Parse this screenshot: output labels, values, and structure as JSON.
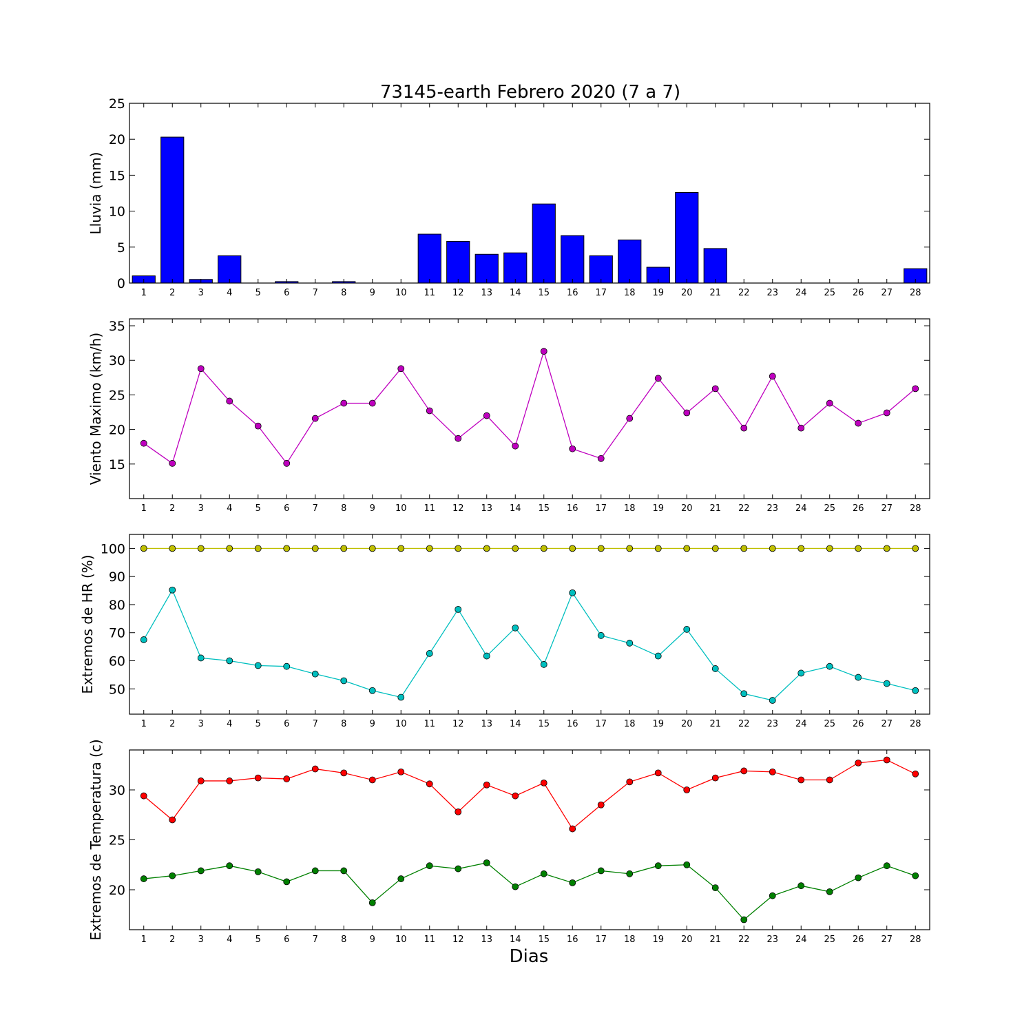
{
  "figure": {
    "title": "73145-earth Febrero 2020  (7 a 7)",
    "xlabel": "Dias"
  },
  "chart_data": [
    {
      "type": "bar",
      "ylabel": "Lluvia (mm)",
      "ylim": [
        0,
        25
      ],
      "yticks": [
        0,
        5,
        10,
        15,
        20,
        25
      ],
      "grid": false,
      "color": "#0000ff",
      "x": [
        1,
        2,
        3,
        4,
        5,
        6,
        7,
        8,
        9,
        10,
        11,
        12,
        13,
        14,
        15,
        16,
        17,
        18,
        19,
        20,
        21,
        22,
        23,
        24,
        25,
        26,
        27,
        28
      ],
      "values": [
        1.0,
        20.3,
        0.5,
        3.8,
        0,
        0.2,
        0,
        0.2,
        0,
        0,
        6.8,
        5.8,
        4.0,
        4.2,
        11.0,
        6.6,
        3.8,
        6.0,
        2.2,
        12.6,
        4.8,
        0,
        0,
        0,
        0,
        0,
        0,
        2.0
      ]
    },
    {
      "type": "line",
      "ylabel": "Viento Maximo (km/h)",
      "ylim": [
        10,
        36
      ],
      "yticks": [
        15,
        20,
        25,
        30,
        35
      ],
      "grid": false,
      "x": [
        1,
        2,
        3,
        4,
        5,
        6,
        7,
        8,
        9,
        10,
        11,
        12,
        13,
        14,
        15,
        16,
        17,
        18,
        19,
        20,
        21,
        22,
        23,
        24,
        25,
        26,
        27,
        28
      ],
      "series": [
        {
          "color": "#bf00bf",
          "values": [
            18.0,
            15.1,
            28.8,
            24.1,
            20.5,
            15.1,
            21.6,
            23.8,
            23.8,
            28.8,
            22.7,
            18.7,
            22.0,
            17.6,
            31.3,
            17.2,
            15.8,
            21.6,
            27.4,
            22.4,
            25.9,
            20.2,
            27.7,
            20.2,
            23.8,
            20.9,
            22.4,
            25.9
          ]
        }
      ]
    },
    {
      "type": "line",
      "ylabel": "Extremos de HR (%)",
      "ylim": [
        41,
        105
      ],
      "yticks": [
        50,
        60,
        70,
        80,
        90,
        100
      ],
      "grid": false,
      "x": [
        1,
        2,
        3,
        4,
        5,
        6,
        7,
        8,
        9,
        10,
        11,
        12,
        13,
        14,
        15,
        16,
        17,
        18,
        19,
        20,
        21,
        22,
        23,
        24,
        25,
        26,
        27,
        28
      ],
      "series": [
        {
          "color": "#bfbf00",
          "values": [
            100,
            100,
            100,
            100,
            100,
            100,
            100,
            100,
            100,
            100,
            100,
            100,
            100,
            100,
            100,
            100,
            100,
            100,
            100,
            100,
            100,
            100,
            100,
            100,
            100,
            100,
            100,
            100
          ]
        },
        {
          "color": "#00bfbf",
          "values": [
            67.5,
            85.2,
            61.0,
            60.0,
            58.3,
            58.0,
            55.3,
            52.9,
            49.4,
            47.0,
            62.6,
            78.3,
            61.7,
            71.7,
            58.7,
            84.2,
            69.0,
            66.3,
            61.7,
            71.2,
            57.2,
            48.3,
            45.9,
            55.6,
            58.0,
            54.1,
            51.9,
            49.4
          ]
        }
      ]
    },
    {
      "type": "line",
      "ylabel": "Extremos de Temperatura (c)",
      "ylim": [
        16,
        34
      ],
      "yticks": [
        20,
        25,
        30
      ],
      "grid": false,
      "x": [
        1,
        2,
        3,
        4,
        5,
        6,
        7,
        8,
        9,
        10,
        11,
        12,
        13,
        14,
        15,
        16,
        17,
        18,
        19,
        20,
        21,
        22,
        23,
        24,
        25,
        26,
        27,
        28
      ],
      "series": [
        {
          "color": "#ff0000",
          "values": [
            29.4,
            27.0,
            30.9,
            30.9,
            31.2,
            31.1,
            32.1,
            31.7,
            31.0,
            31.8,
            30.6,
            27.8,
            30.5,
            29.4,
            30.7,
            26.1,
            28.5,
            30.8,
            31.7,
            30.0,
            31.2,
            31.9,
            31.8,
            31.0,
            31.0,
            32.7,
            33.0,
            31.6
          ]
        },
        {
          "color": "#008000",
          "values": [
            21.1,
            21.4,
            21.9,
            22.4,
            21.8,
            20.8,
            21.9,
            21.9,
            18.7,
            21.1,
            22.4,
            22.1,
            22.7,
            20.3,
            21.6,
            20.7,
            21.9,
            21.6,
            22.4,
            22.5,
            20.2,
            17.0,
            19.4,
            20.4,
            19.8,
            21.2,
            22.4,
            21.4
          ]
        }
      ]
    }
  ]
}
